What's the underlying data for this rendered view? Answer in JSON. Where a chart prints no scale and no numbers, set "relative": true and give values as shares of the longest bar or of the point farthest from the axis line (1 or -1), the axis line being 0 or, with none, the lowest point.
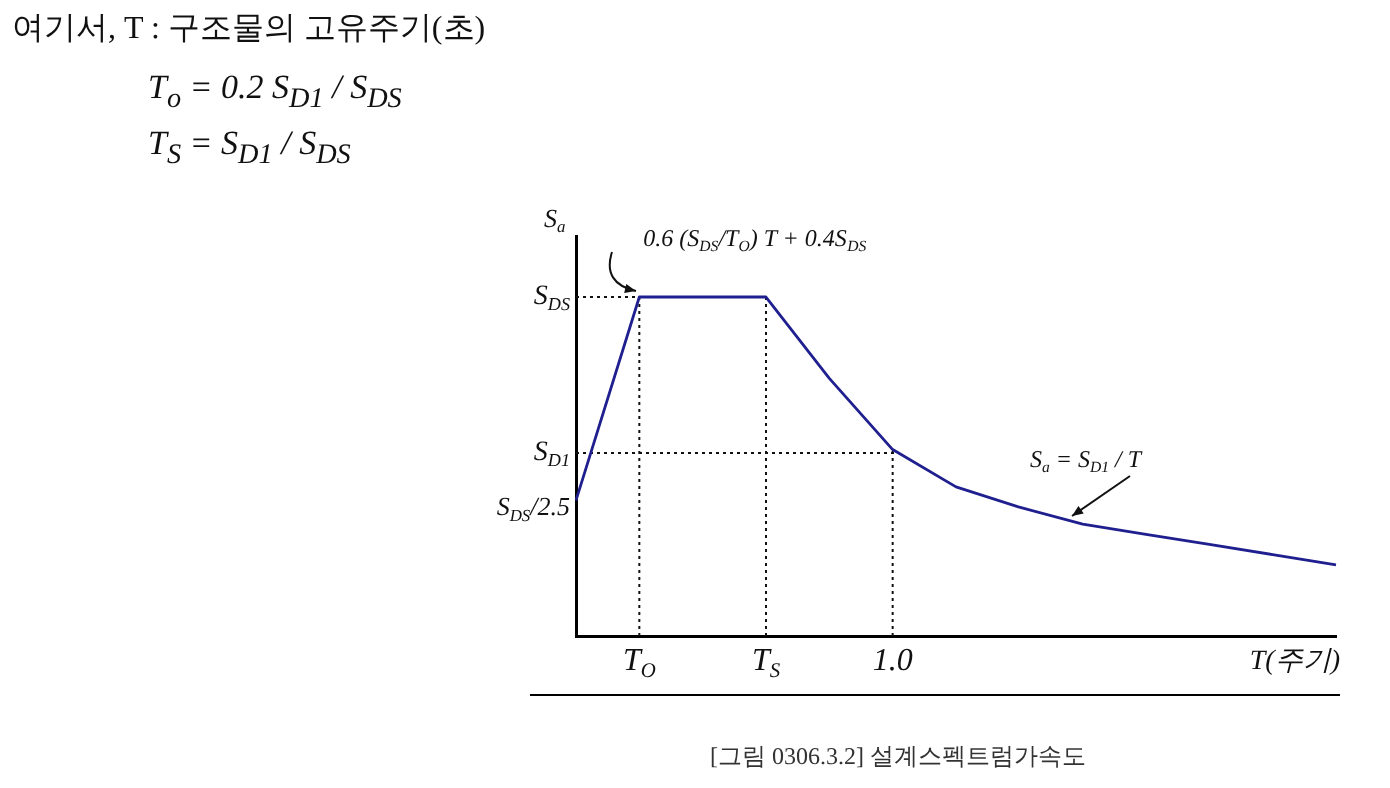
{
  "chart_data": {
    "type": "line",
    "title": "여기서, T : 구조물의 고유주기(초)",
    "subtitle": "T$_{o}$ = 0.2 S$_{D1}$ / S$_{DS}$",
    "xlabel": "T(주기)",
    "ylabel": "S$_{a}$",
    "relative": true,
    "categories": [
      null,
      "T$_{O}$",
      null,
      "T$_{S}$",
      null,
      "1.0",
      null,
      null,
      null,
      null,
      null,
      null,
      null
    ],
    "series": [
      {
        "color": "#1f1f8f",
        "values": [
          0.4,
          1,
          1,
          1,
          0.76,
          0.55,
          0.44,
          0.38,
          0.33,
          0.3,
          0.27,
          0.24,
          0.21
        ]
      }
    ],
    "ref_lines": [
      {
        "axis": "x",
        "value": "T$_{O}$",
        "line_style": "dotted"
      },
      {
        "axis": "x",
        "value": "T$_{S}$",
        "line_style": "dotted"
      },
      {
        "axis": "x",
        "value": "1.0",
        "line_style": "dotted"
      },
      {
        "axis": "y",
        "value": 1,
        "label": "S$_{DS}$",
        "line_style": "dotted"
      },
      {
        "axis": "y",
        "value": 0.54,
        "label": "S$_{D1}$",
        "line_style": "dotted"
      }
    ],
    "annotations": [
      "T$_{S}$ = S$_{D1}$ / S$_{DS}$",
      "0.6 (S$_{DS}$/T$_{O}$) T + 0.4S$_{DS}$",
      "S$_{DS}$/2.5",
      "S$_{a}$ = S$_{D1}$ / T",
      "[그림 0306.3.2] 설계스펙트럼가속도"
    ],
    "legend": false,
    "marker": "none",
    "line_style": "solid"
  }
}
